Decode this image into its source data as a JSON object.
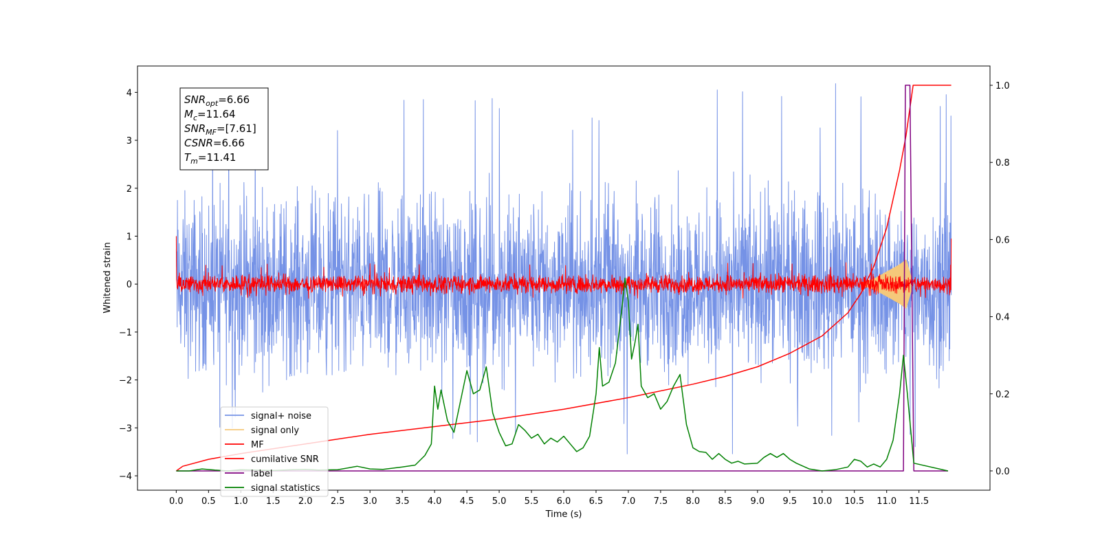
{
  "chart_data": {
    "type": "line",
    "xlabel": "Time (s)",
    "ylabel": "Whitened strain",
    "xlim": [
      -0.6,
      12.6
    ],
    "ylim": [
      -4.3,
      4.55
    ],
    "y2lim": [
      -0.05,
      1.05
    ],
    "x_ticks": [
      0.0,
      0.5,
      1.0,
      1.5,
      2.0,
      2.5,
      3.0,
      3.5,
      4.0,
      4.5,
      5.0,
      5.5,
      6.0,
      6.5,
      7.0,
      7.5,
      8.0,
      8.5,
      9.0,
      9.5,
      10.0,
      10.5,
      11.0,
      11.5
    ],
    "x_tick_labels": [
      "0.0",
      "0.5",
      "1.0",
      "1.5",
      "2.0",
      "2.5",
      "3.0",
      "3.5",
      "4.0",
      "4.5",
      "5.0",
      "5.5",
      "6.0",
      "6.5",
      "7.0",
      "7.5",
      "8.0",
      "8.5",
      "9.0",
      "9.5",
      "10.0",
      "10.5",
      "11.0",
      "11.5"
    ],
    "y_ticks": [
      -4,
      -3,
      -2,
      -1,
      0,
      1,
      2,
      3,
      4
    ],
    "y_tick_labels": [
      "−4",
      "−3",
      "−2",
      "−1",
      "0",
      "1",
      "2",
      "3",
      "4"
    ],
    "y2_ticks": [
      0.0,
      0.2,
      0.4,
      0.6,
      0.8,
      1.0
    ],
    "y2_tick_labels": [
      "0.0",
      "0.2",
      "0.4",
      "0.6",
      "0.8",
      "1.0"
    ],
    "grid": false,
    "legend_position": "lower-left",
    "annotation": {
      "lines": [
        {
          "base": "SNR",
          "sub": "opt",
          "value": "=6.66"
        },
        {
          "base": "M",
          "sub": "c",
          "value": "=11.64"
        },
        {
          "base": "SNR",
          "sub": "MF",
          "value": "=[7.61]"
        },
        {
          "base": "CSNR",
          "sub": "",
          "value": "=6.66"
        },
        {
          "base": "T",
          "sub": "m",
          "value": "=11.41"
        }
      ]
    },
    "series": [
      {
        "name": "signal+ noise",
        "color": "#7592e6",
        "axis": "left",
        "kind": "noise",
        "x_range": [
          0.0,
          12.0
        ],
        "center": -0.05,
        "band": [
          -2.1,
          2.1
        ],
        "spike_max": 4.2,
        "spike_min": -3.6
      },
      {
        "name": "signal only",
        "color": "#f5c87a",
        "axis": "left",
        "kind": "chirp",
        "x_range": [
          10.6,
          11.41
        ],
        "points": [
          [
            10.6,
            0.02
          ],
          [
            10.8,
            0.1
          ],
          [
            11.0,
            0.25
          ],
          [
            11.2,
            0.4
          ],
          [
            11.3,
            0.5
          ],
          [
            11.41,
            0.0
          ]
        ]
      },
      {
        "name": "MF",
        "color": "#ff0000",
        "axis": "left",
        "kind": "noise",
        "x_range": [
          0.0,
          12.0
        ],
        "center": 0.0,
        "band": [
          -0.22,
          0.22
        ],
        "spike_max": 0.45,
        "spike_min": -0.3,
        "start_value": 1.0,
        "end_value": 0.95
      },
      {
        "name": "cumilative SNR",
        "color": "#ff0000",
        "axis": "right",
        "points": [
          [
            0.0,
            0.0
          ],
          [
            0.1,
            0.012
          ],
          [
            0.5,
            0.03
          ],
          [
            1.0,
            0.045
          ],
          [
            2.0,
            0.07
          ],
          [
            3.0,
            0.095
          ],
          [
            4.0,
            0.115
          ],
          [
            5.0,
            0.135
          ],
          [
            6.0,
            0.16
          ],
          [
            7.0,
            0.19
          ],
          [
            8.0,
            0.225
          ],
          [
            8.5,
            0.245
          ],
          [
            9.0,
            0.27
          ],
          [
            9.5,
            0.305
          ],
          [
            10.0,
            0.35
          ],
          [
            10.4,
            0.41
          ],
          [
            10.6,
            0.46
          ],
          [
            10.8,
            0.53
          ],
          [
            11.0,
            0.63
          ],
          [
            11.2,
            0.78
          ],
          [
            11.3,
            0.87
          ],
          [
            11.41,
            1.0
          ],
          [
            12.0,
            1.0
          ]
        ]
      },
      {
        "name": "label",
        "color": "#800080",
        "axis": "right",
        "points": [
          [
            0.0,
            0.0
          ],
          [
            11.26,
            0.0
          ],
          [
            11.29,
            1.0
          ],
          [
            11.36,
            1.0
          ],
          [
            11.42,
            0.0
          ],
          [
            11.95,
            0.0
          ]
        ]
      },
      {
        "name": "signal statistics",
        "color": "#008000",
        "axis": "right",
        "points": [
          [
            0.0,
            0.0
          ],
          [
            0.2,
            0.0
          ],
          [
            0.4,
            0.005
          ],
          [
            0.6,
            0.002
          ],
          [
            0.8,
            0.0
          ],
          [
            1.0,
            0.003
          ],
          [
            1.2,
            0.002
          ],
          [
            1.5,
            0.001
          ],
          [
            1.8,
            0.003
          ],
          [
            2.0,
            0.004
          ],
          [
            2.2,
            0.002
          ],
          [
            2.5,
            0.003
          ],
          [
            2.8,
            0.012
          ],
          [
            3.0,
            0.005
          ],
          [
            3.2,
            0.004
          ],
          [
            3.5,
            0.01
          ],
          [
            3.7,
            0.015
          ],
          [
            3.85,
            0.04
          ],
          [
            3.95,
            0.07
          ],
          [
            4.0,
            0.22
          ],
          [
            4.05,
            0.16
          ],
          [
            4.1,
            0.21
          ],
          [
            4.2,
            0.13
          ],
          [
            4.3,
            0.1
          ],
          [
            4.4,
            0.18
          ],
          [
            4.5,
            0.26
          ],
          [
            4.6,
            0.2
          ],
          [
            4.7,
            0.21
          ],
          [
            4.8,
            0.27
          ],
          [
            4.9,
            0.15
          ],
          [
            5.0,
            0.1
          ],
          [
            5.1,
            0.065
          ],
          [
            5.2,
            0.07
          ],
          [
            5.3,
            0.12
          ],
          [
            5.4,
            0.105
          ],
          [
            5.5,
            0.085
          ],
          [
            5.6,
            0.095
          ],
          [
            5.7,
            0.07
          ],
          [
            5.8,
            0.085
          ],
          [
            5.9,
            0.075
          ],
          [
            6.0,
            0.09
          ],
          [
            6.1,
            0.07
          ],
          [
            6.2,
            0.05
          ],
          [
            6.3,
            0.06
          ],
          [
            6.4,
            0.09
          ],
          [
            6.5,
            0.2
          ],
          [
            6.55,
            0.32
          ],
          [
            6.6,
            0.22
          ],
          [
            6.7,
            0.23
          ],
          [
            6.8,
            0.28
          ],
          [
            6.9,
            0.42
          ],
          [
            6.95,
            0.5
          ],
          [
            7.0,
            0.44
          ],
          [
            7.05,
            0.29
          ],
          [
            7.1,
            0.33
          ],
          [
            7.15,
            0.38
          ],
          [
            7.2,
            0.22
          ],
          [
            7.3,
            0.19
          ],
          [
            7.4,
            0.2
          ],
          [
            7.5,
            0.16
          ],
          [
            7.6,
            0.18
          ],
          [
            7.7,
            0.22
          ],
          [
            7.8,
            0.25
          ],
          [
            7.9,
            0.12
          ],
          [
            8.0,
            0.06
          ],
          [
            8.1,
            0.05
          ],
          [
            8.2,
            0.048
          ],
          [
            8.3,
            0.03
          ],
          [
            8.4,
            0.045
          ],
          [
            8.5,
            0.03
          ],
          [
            8.6,
            0.02
          ],
          [
            8.7,
            0.025
          ],
          [
            8.8,
            0.018
          ],
          [
            9.0,
            0.02
          ],
          [
            9.1,
            0.035
          ],
          [
            9.2,
            0.045
          ],
          [
            9.3,
            0.035
          ],
          [
            9.4,
            0.045
          ],
          [
            9.5,
            0.03
          ],
          [
            9.6,
            0.02
          ],
          [
            9.8,
            0.005
          ],
          [
            10.0,
            0.0
          ],
          [
            10.2,
            0.003
          ],
          [
            10.4,
            0.01
          ],
          [
            10.5,
            0.03
          ],
          [
            10.6,
            0.025
          ],
          [
            10.7,
            0.01
          ],
          [
            10.8,
            0.018
          ],
          [
            10.9,
            0.01
          ],
          [
            11.0,
            0.03
          ],
          [
            11.1,
            0.08
          ],
          [
            11.2,
            0.2
          ],
          [
            11.26,
            0.3
          ],
          [
            11.32,
            0.2
          ],
          [
            11.42,
            0.02
          ],
          [
            11.95,
            0.0
          ]
        ]
      }
    ]
  }
}
